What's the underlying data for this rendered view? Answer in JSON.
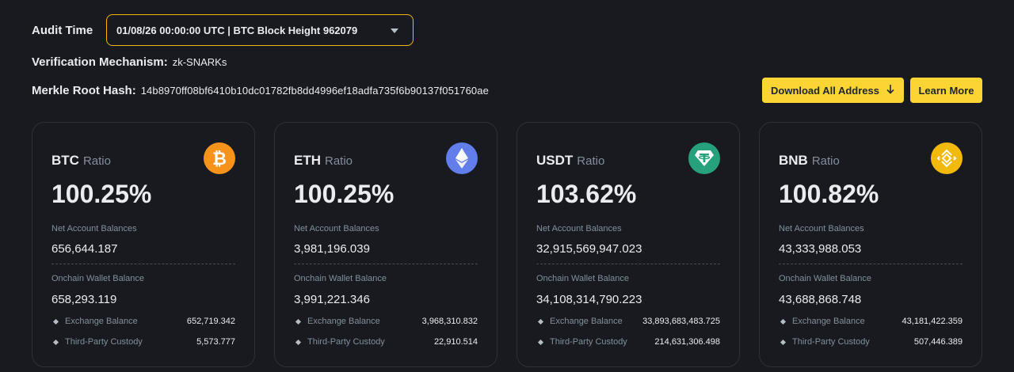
{
  "audit": {
    "label": "Audit Time",
    "selected": "01/08/26 00:00:00 UTC | BTC Block Height 962079"
  },
  "verification": {
    "label": "Verification Mechanism:",
    "value": "zk-SNARKs"
  },
  "merkle": {
    "label": "Merkle Root Hash:",
    "value": "14b8970ff08bf6410b10dc01782fb8dd4996ef18adfa735f6b90137f051760ae"
  },
  "buttons": {
    "download": "Download All Address",
    "learn_more": "Learn More"
  },
  "cards": [
    {
      "symbol": "BTC",
      "ratio_label": "Ratio",
      "percent": "100.25%",
      "net_label": "Net Account Balances",
      "net_value": "656,644.187",
      "onchain_label": "Onchain Wallet Balance",
      "onchain_value": "658,293.119",
      "exchange_label": "Exchange Balance",
      "exchange_value": "652,719.342",
      "custody_label": "Third-Party Custody",
      "custody_value": "5,573.777",
      "icon": "bitcoin-icon",
      "color": "#f7931a"
    },
    {
      "symbol": "ETH",
      "ratio_label": "Ratio",
      "percent": "100.25%",
      "net_label": "Net Account Balances",
      "net_value": "3,981,196.039",
      "onchain_label": "Onchain Wallet Balance",
      "onchain_value": "3,991,221.346",
      "exchange_label": "Exchange Balance",
      "exchange_value": "3,968,310.832",
      "custody_label": "Third-Party Custody",
      "custody_value": "22,910.514",
      "icon": "ethereum-icon",
      "color": "#627eea"
    },
    {
      "symbol": "USDT",
      "ratio_label": "Ratio",
      "percent": "103.62%",
      "net_label": "Net Account Balances",
      "net_value": "32,915,569,947.023",
      "onchain_label": "Onchain Wallet Balance",
      "onchain_value": "34,108,314,790.223",
      "exchange_label": "Exchange Balance",
      "exchange_value": "33,893,683,483.725",
      "custody_label": "Third-Party Custody",
      "custody_value": "214,631,306.498",
      "icon": "tether-icon",
      "color": "#26a17b"
    },
    {
      "symbol": "BNB",
      "ratio_label": "Ratio",
      "percent": "100.82%",
      "net_label": "Net Account Balances",
      "net_value": "43,333,988.053",
      "onchain_label": "Onchain Wallet Balance",
      "onchain_value": "43,688,868.748",
      "exchange_label": "Exchange Balance",
      "exchange_value": "43,181,422.359",
      "custody_label": "Third-Party Custody",
      "custody_value": "507,446.389",
      "icon": "bnb-icon",
      "color": "#f0b90b"
    }
  ],
  "colors": {
    "background": "#181a20",
    "accent": "#fcd535",
    "border": "#2b3139",
    "muted": "#848e9c"
  }
}
